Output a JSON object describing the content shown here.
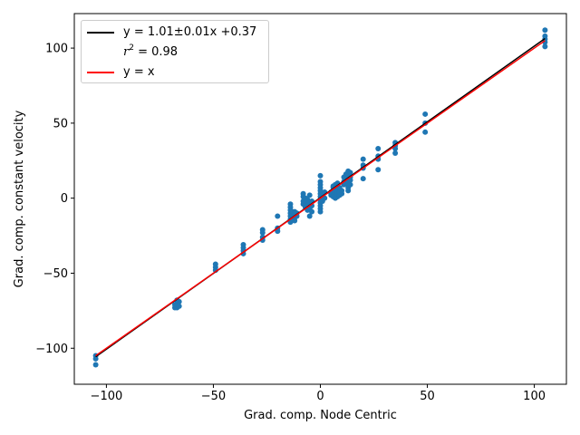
{
  "chart_data": {
    "type": "scatter",
    "xlabel": "Grad. comp. Node Centric",
    "ylabel": "Grad. comp. constant velocity",
    "xlim": [
      -115,
      115
    ],
    "ylim": [
      -124,
      123
    ],
    "xticks": [
      -100,
      -50,
      0,
      50,
      100
    ],
    "yticks": [
      -100,
      -50,
      0,
      50,
      100
    ],
    "grid": false,
    "legend_position": "top-left",
    "legend": {
      "fit_label": "y = 1.01±0.01x +0.37",
      "r2_symbol": "r",
      "r2_exp": "2",
      "r2_value": " = 0.98",
      "identity_label": "y = x"
    },
    "colors": {
      "points": "#1f77b4",
      "fit": "#000000",
      "identity": "#ff0000"
    },
    "fit": {
      "slope": 1.01,
      "intercept": 0.37
    },
    "series": [
      {
        "points": [
          [
            -105,
            -105
          ],
          [
            -105,
            -107
          ],
          [
            -105,
            -111
          ],
          [
            -67,
            -70
          ],
          [
            -67,
            -72
          ],
          [
            -67,
            -73
          ],
          [
            -68,
            -71
          ],
          [
            -68,
            -73
          ],
          [
            -66,
            -69
          ],
          [
            -66,
            -72
          ],
          [
            -67,
            -68
          ],
          [
            -49,
            -44
          ],
          [
            -49,
            -46
          ],
          [
            -49,
            -48
          ],
          [
            -36,
            -31
          ],
          [
            -36,
            -33
          ],
          [
            -36,
            -35
          ],
          [
            -36,
            -37
          ],
          [
            -27,
            -21
          ],
          [
            -27,
            -23
          ],
          [
            -27,
            -26
          ],
          [
            -27,
            -28
          ],
          [
            -20,
            -12
          ],
          [
            -20,
            -20
          ],
          [
            -20,
            -22
          ],
          [
            -14,
            -4
          ],
          [
            -14,
            -6
          ],
          [
            -14,
            -8
          ],
          [
            -14,
            -10
          ],
          [
            -14,
            -12
          ],
          [
            -14,
            -14
          ],
          [
            -14,
            -16
          ],
          [
            -13,
            -9
          ],
          [
            -13,
            -13
          ],
          [
            -12,
            -9
          ],
          [
            -12,
            -11
          ],
          [
            -12,
            -13
          ],
          [
            -12,
            -15
          ],
          [
            -11,
            -10
          ],
          [
            -11,
            -12
          ],
          [
            -8,
            3
          ],
          [
            -8,
            1
          ],
          [
            -8,
            -2
          ],
          [
            -8,
            -4
          ],
          [
            -7,
            0
          ],
          [
            -7,
            -3
          ],
          [
            -7,
            -6
          ],
          [
            -6,
            -1
          ],
          [
            -6,
            -5
          ],
          [
            -6,
            -8
          ],
          [
            -5,
            2
          ],
          [
            -5,
            -3
          ],
          [
            -5,
            -7
          ],
          [
            -5,
            -12
          ],
          [
            -4,
            -2
          ],
          [
            -4,
            -5
          ],
          [
            -4,
            -9
          ],
          [
            0,
            15
          ],
          [
            0,
            11
          ],
          [
            0,
            9
          ],
          [
            0,
            7
          ],
          [
            0,
            5
          ],
          [
            0,
            3
          ],
          [
            0,
            1
          ],
          [
            0,
            -1
          ],
          [
            0,
            -3
          ],
          [
            0,
            -5
          ],
          [
            0,
            -7
          ],
          [
            0,
            -9
          ],
          [
            1,
            2
          ],
          [
            1,
            -2
          ],
          [
            2,
            4
          ],
          [
            2,
            0
          ],
          [
            5,
            2
          ],
          [
            5,
            3
          ],
          [
            5,
            4
          ],
          [
            6,
            1
          ],
          [
            6,
            5
          ],
          [
            6,
            7
          ],
          [
            6,
            8
          ],
          [
            7,
            0
          ],
          [
            7,
            2
          ],
          [
            7,
            4
          ],
          [
            7,
            6
          ],
          [
            7,
            9
          ],
          [
            8,
            1
          ],
          [
            8,
            3
          ],
          [
            8,
            5
          ],
          [
            8,
            10
          ],
          [
            9,
            2
          ],
          [
            9,
            4
          ],
          [
            9,
            7
          ],
          [
            10,
            3
          ],
          [
            10,
            5
          ],
          [
            11,
            9
          ],
          [
            11,
            11
          ],
          [
            11,
            14
          ],
          [
            12,
            10
          ],
          [
            12,
            12
          ],
          [
            12,
            16
          ],
          [
            13,
            5
          ],
          [
            13,
            7
          ],
          [
            13,
            11
          ],
          [
            13,
            13
          ],
          [
            13,
            15
          ],
          [
            13,
            18
          ],
          [
            14,
            9
          ],
          [
            14,
            12
          ],
          [
            14,
            14
          ],
          [
            14,
            17
          ],
          [
            20,
            13
          ],
          [
            20,
            20
          ],
          [
            20,
            22
          ],
          [
            20,
            26
          ],
          [
            27,
            19
          ],
          [
            27,
            26
          ],
          [
            27,
            28
          ],
          [
            27,
            33
          ],
          [
            35,
            30
          ],
          [
            35,
            33
          ],
          [
            35,
            35
          ],
          [
            35,
            37
          ],
          [
            49,
            44
          ],
          [
            49,
            50
          ],
          [
            49,
            56
          ],
          [
            105,
            101
          ],
          [
            105,
            104
          ],
          [
            105,
            106
          ],
          [
            105,
            108
          ],
          [
            105,
            112
          ]
        ]
      }
    ]
  }
}
